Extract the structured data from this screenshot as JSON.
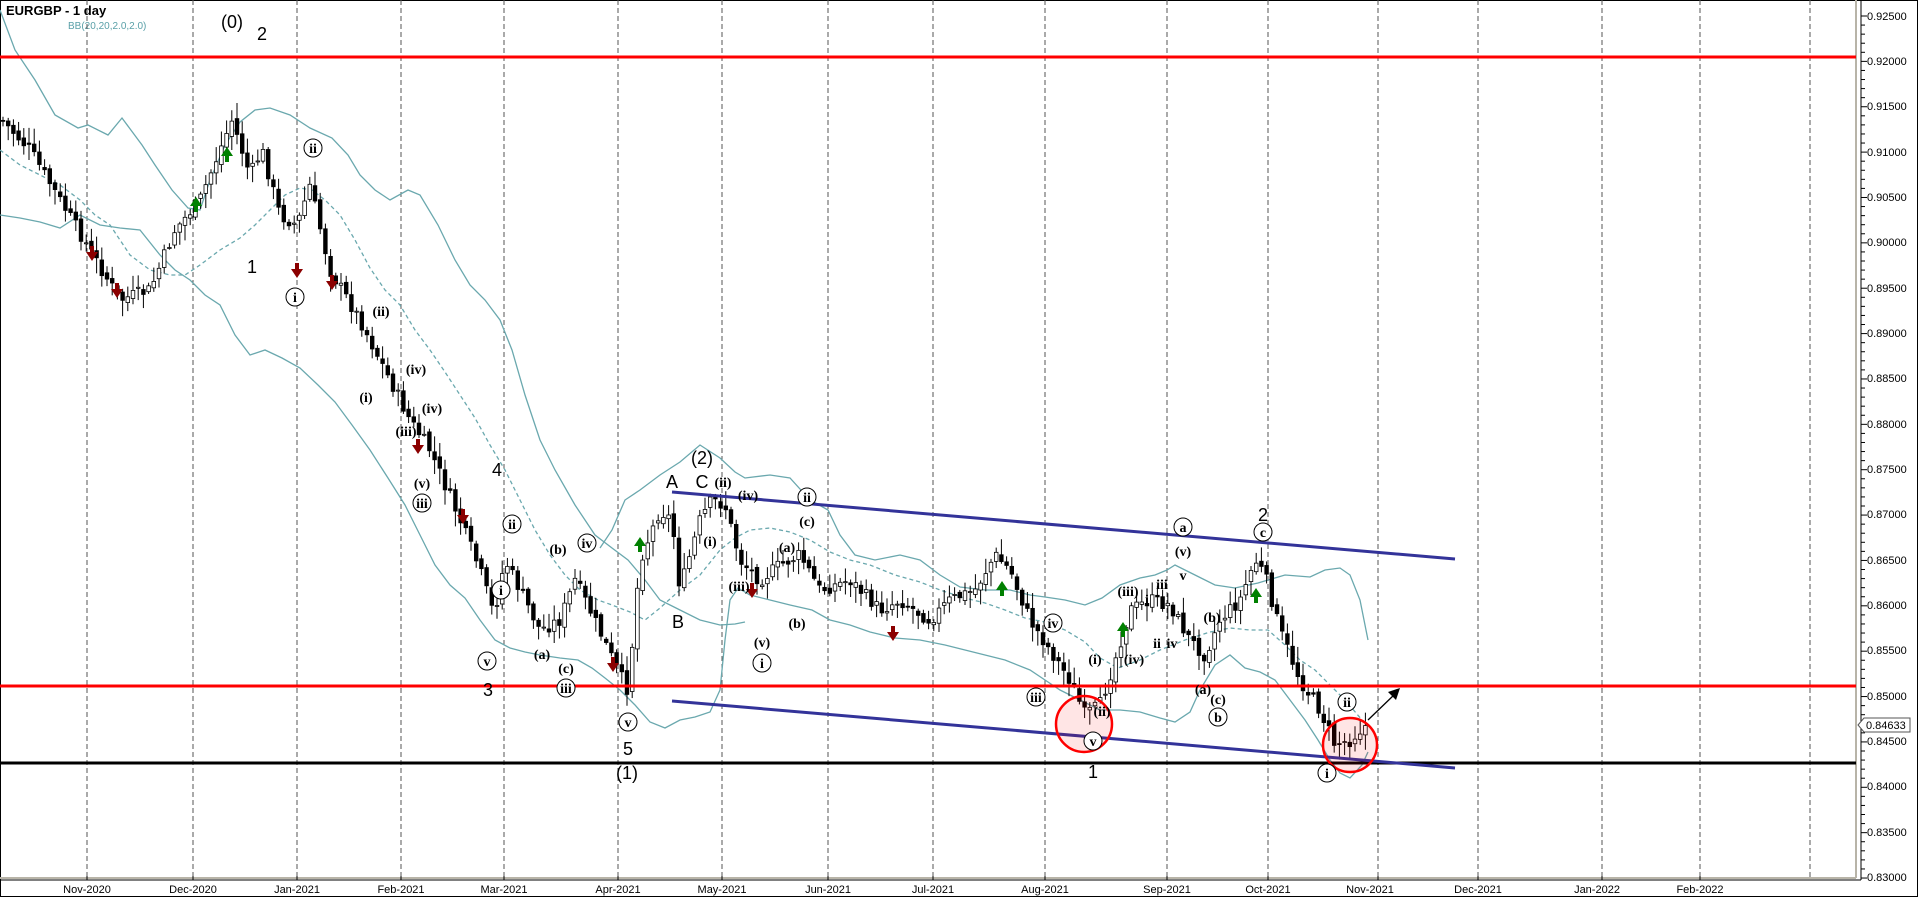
{
  "header": {
    "title": "EURGBP - 1 day",
    "indicator": "BB(20,20,2.0,2.0)"
  },
  "price_marker": "0.84633",
  "colors": {
    "resistance": "#ff0000",
    "support": "#000000",
    "channel": "#333399",
    "bollinger": "#6aa8ae",
    "up_arrow": "#008000",
    "down_arrow": "#8b0000",
    "highlight_circle": "#ff0000"
  },
  "chart_data": {
    "type": "candlestick",
    "title": "EURGBP - 1 day",
    "indicator": "Bollinger Bands BB(20,20,2.0,2.0)",
    "xlabel": "",
    "ylabel": "",
    "ylim": [
      0.83,
      0.925
    ],
    "y_ticks": [
      "0.92500",
      "0.92000",
      "0.91500",
      "0.91000",
      "0.90500",
      "0.90000",
      "0.89500",
      "0.89000",
      "0.88500",
      "0.88000",
      "0.87500",
      "0.87000",
      "0.86500",
      "0.86000",
      "0.85500",
      "0.85000",
      "0.84500",
      "0.84000",
      "0.83500",
      "0.83000"
    ],
    "x_ticks": [
      "Nov-2020",
      "Dec-2020",
      "Jan-2021",
      "Feb-2021",
      "Mar-2021",
      "Apr-2021",
      "May-2021",
      "Jun-2021",
      "Jul-2021",
      "Aug-2021",
      "Sep-2021",
      "Oct-2021",
      "Nov-2021",
      "Dec-2021",
      "Jan-2022",
      "Feb-2022"
    ],
    "last_price": 0.84633,
    "horizontal_levels": [
      {
        "price": 0.9205,
        "color": "#ff0000",
        "label": "resistance"
      },
      {
        "price": 0.8505,
        "color": "#ff0000",
        "label": "resistance"
      },
      {
        "price": 0.8418,
        "color": "#000000",
        "label": "support"
      }
    ],
    "channel": {
      "upper": [
        {
          "date": "Apr-2021 mid",
          "price": 0.8718
        },
        {
          "date": "Nov-2021 end",
          "price": 0.8645
        }
      ],
      "lower": [
        {
          "date": "Apr-2021 mid",
          "price": 0.8487
        },
        {
          "date": "Nov-2021 end",
          "price": 0.8412
        }
      ]
    },
    "approx_close_path": [
      {
        "date": "Oct-2020 end",
        "price": 0.908
      },
      {
        "date": "Nov-2020 mid",
        "price": 0.897
      },
      {
        "date": "Dec-2020 start",
        "price": 0.902
      },
      {
        "date": "Dec-2020 end",
        "price": 0.9229
      },
      {
        "date": "Jan-2021 start",
        "price": 0.8965
      },
      {
        "date": "Jan-2021 start2",
        "price": 0.9095
      },
      {
        "date": "Feb-2021 start",
        "price": 0.886
      },
      {
        "date": "Feb-2021 mid",
        "price": 0.872
      },
      {
        "date": "Mar-2021 start",
        "price": 0.8535
      },
      {
        "date": "Mar-2021 mid",
        "price": 0.8685
      },
      {
        "date": "Apr-2021 start",
        "price": 0.8472
      },
      {
        "date": "Apr-2021 mid",
        "price": 0.8718
      },
      {
        "date": "Apr-2021 end",
        "price": 0.8595
      },
      {
        "date": "May-2021 start",
        "price": 0.8725
      },
      {
        "date": "May-2021 mid",
        "price": 0.8575
      },
      {
        "date": "Jul-2021 start",
        "price": 0.8555
      },
      {
        "date": "Jul-2021 end",
        "price": 0.8665
      },
      {
        "date": "Aug-2021 mid",
        "price": 0.8455
      },
      {
        "date": "Sep-2021 start",
        "price": 0.8625
      },
      {
        "date": "Sep-2021 mid",
        "price": 0.8495
      },
      {
        "date": "Sep-2021 end",
        "price": 0.8655
      },
      {
        "date": "Oct-2021 end",
        "price": 0.8418
      },
      {
        "date": "Nov-2021 start",
        "price": 0.8463
      }
    ],
    "annotations": [
      "(0)",
      "2",
      "1",
      "i",
      "ii",
      "(i)",
      "(ii)",
      "(iii)",
      "(iv)",
      "(v)",
      "iii",
      "iv",
      "v",
      "4",
      "3",
      "(a)",
      "(b)",
      "(c)",
      "5",
      "(1)",
      "A",
      "B",
      "C",
      "(2)",
      "1",
      "2",
      "a",
      "b",
      "c",
      "projection arrow up"
    ]
  },
  "labels": {
    "l0": "(0)",
    "l2a": "2",
    "l1a": "1",
    "li_jan": "i",
    "lii_jan": "ii",
    "lpii_feb": "(ii)",
    "lpi_feb": "(i)",
    "lpiv_feb": "(iv)",
    "lpiii_feb": "(iii)",
    "lpiv2_feb": "(iv)",
    "lpv_feb": "(v)",
    "liii_feb": "iii",
    "l4": "4",
    "lii_mar": "ii",
    "li_mar": "i",
    "lv_mar": "v",
    "l3": "3",
    "lpb_mar": "(b)",
    "liv_mar": "iv",
    "lpa_mar": "(a)",
    "lpc_mar": "(c)",
    "liii_mar": "iii",
    "lv_apr": "v",
    "l5": "5",
    "lp1": "(1)",
    "lA": "A",
    "lB": "B",
    "lC": "C",
    "lp2": "(2)",
    "lpii_apr": "(ii)",
    "lpi_apr": "(i)",
    "lpiv_may": "(iv)",
    "lpiii_may": "(iii)",
    "lpv_may": "(v)",
    "li_may": "i",
    "lii_may": "ii",
    "lpc_may": "(c)",
    "lpa_may": "(a)",
    "lpb_may": "(b)",
    "liv_jul": "iv",
    "liii_jul": "iii",
    "lpi_aug": "(i)",
    "lpii_aug": "(ii)",
    "lv_aug": "v",
    "l1_aug": "1",
    "lpiii_aug": "(iii)",
    "lpiv_aug": "(iv)",
    "lsi_aug": "i",
    "lsii_aug": "ii",
    "lsiii_aug": "iii",
    "lsiv_aug": "iv",
    "lsv_aug": "v",
    "la_sep": "a",
    "lpv_sep": "(v)",
    "lpb_sep": "(b)",
    "lpa_sep": "(a)",
    "lpc_sep": "(c)",
    "lb_sep": "b",
    "l2_sep": "2",
    "lc_sep": "c",
    "lii_oct": "ii",
    "li_oct": "i"
  }
}
